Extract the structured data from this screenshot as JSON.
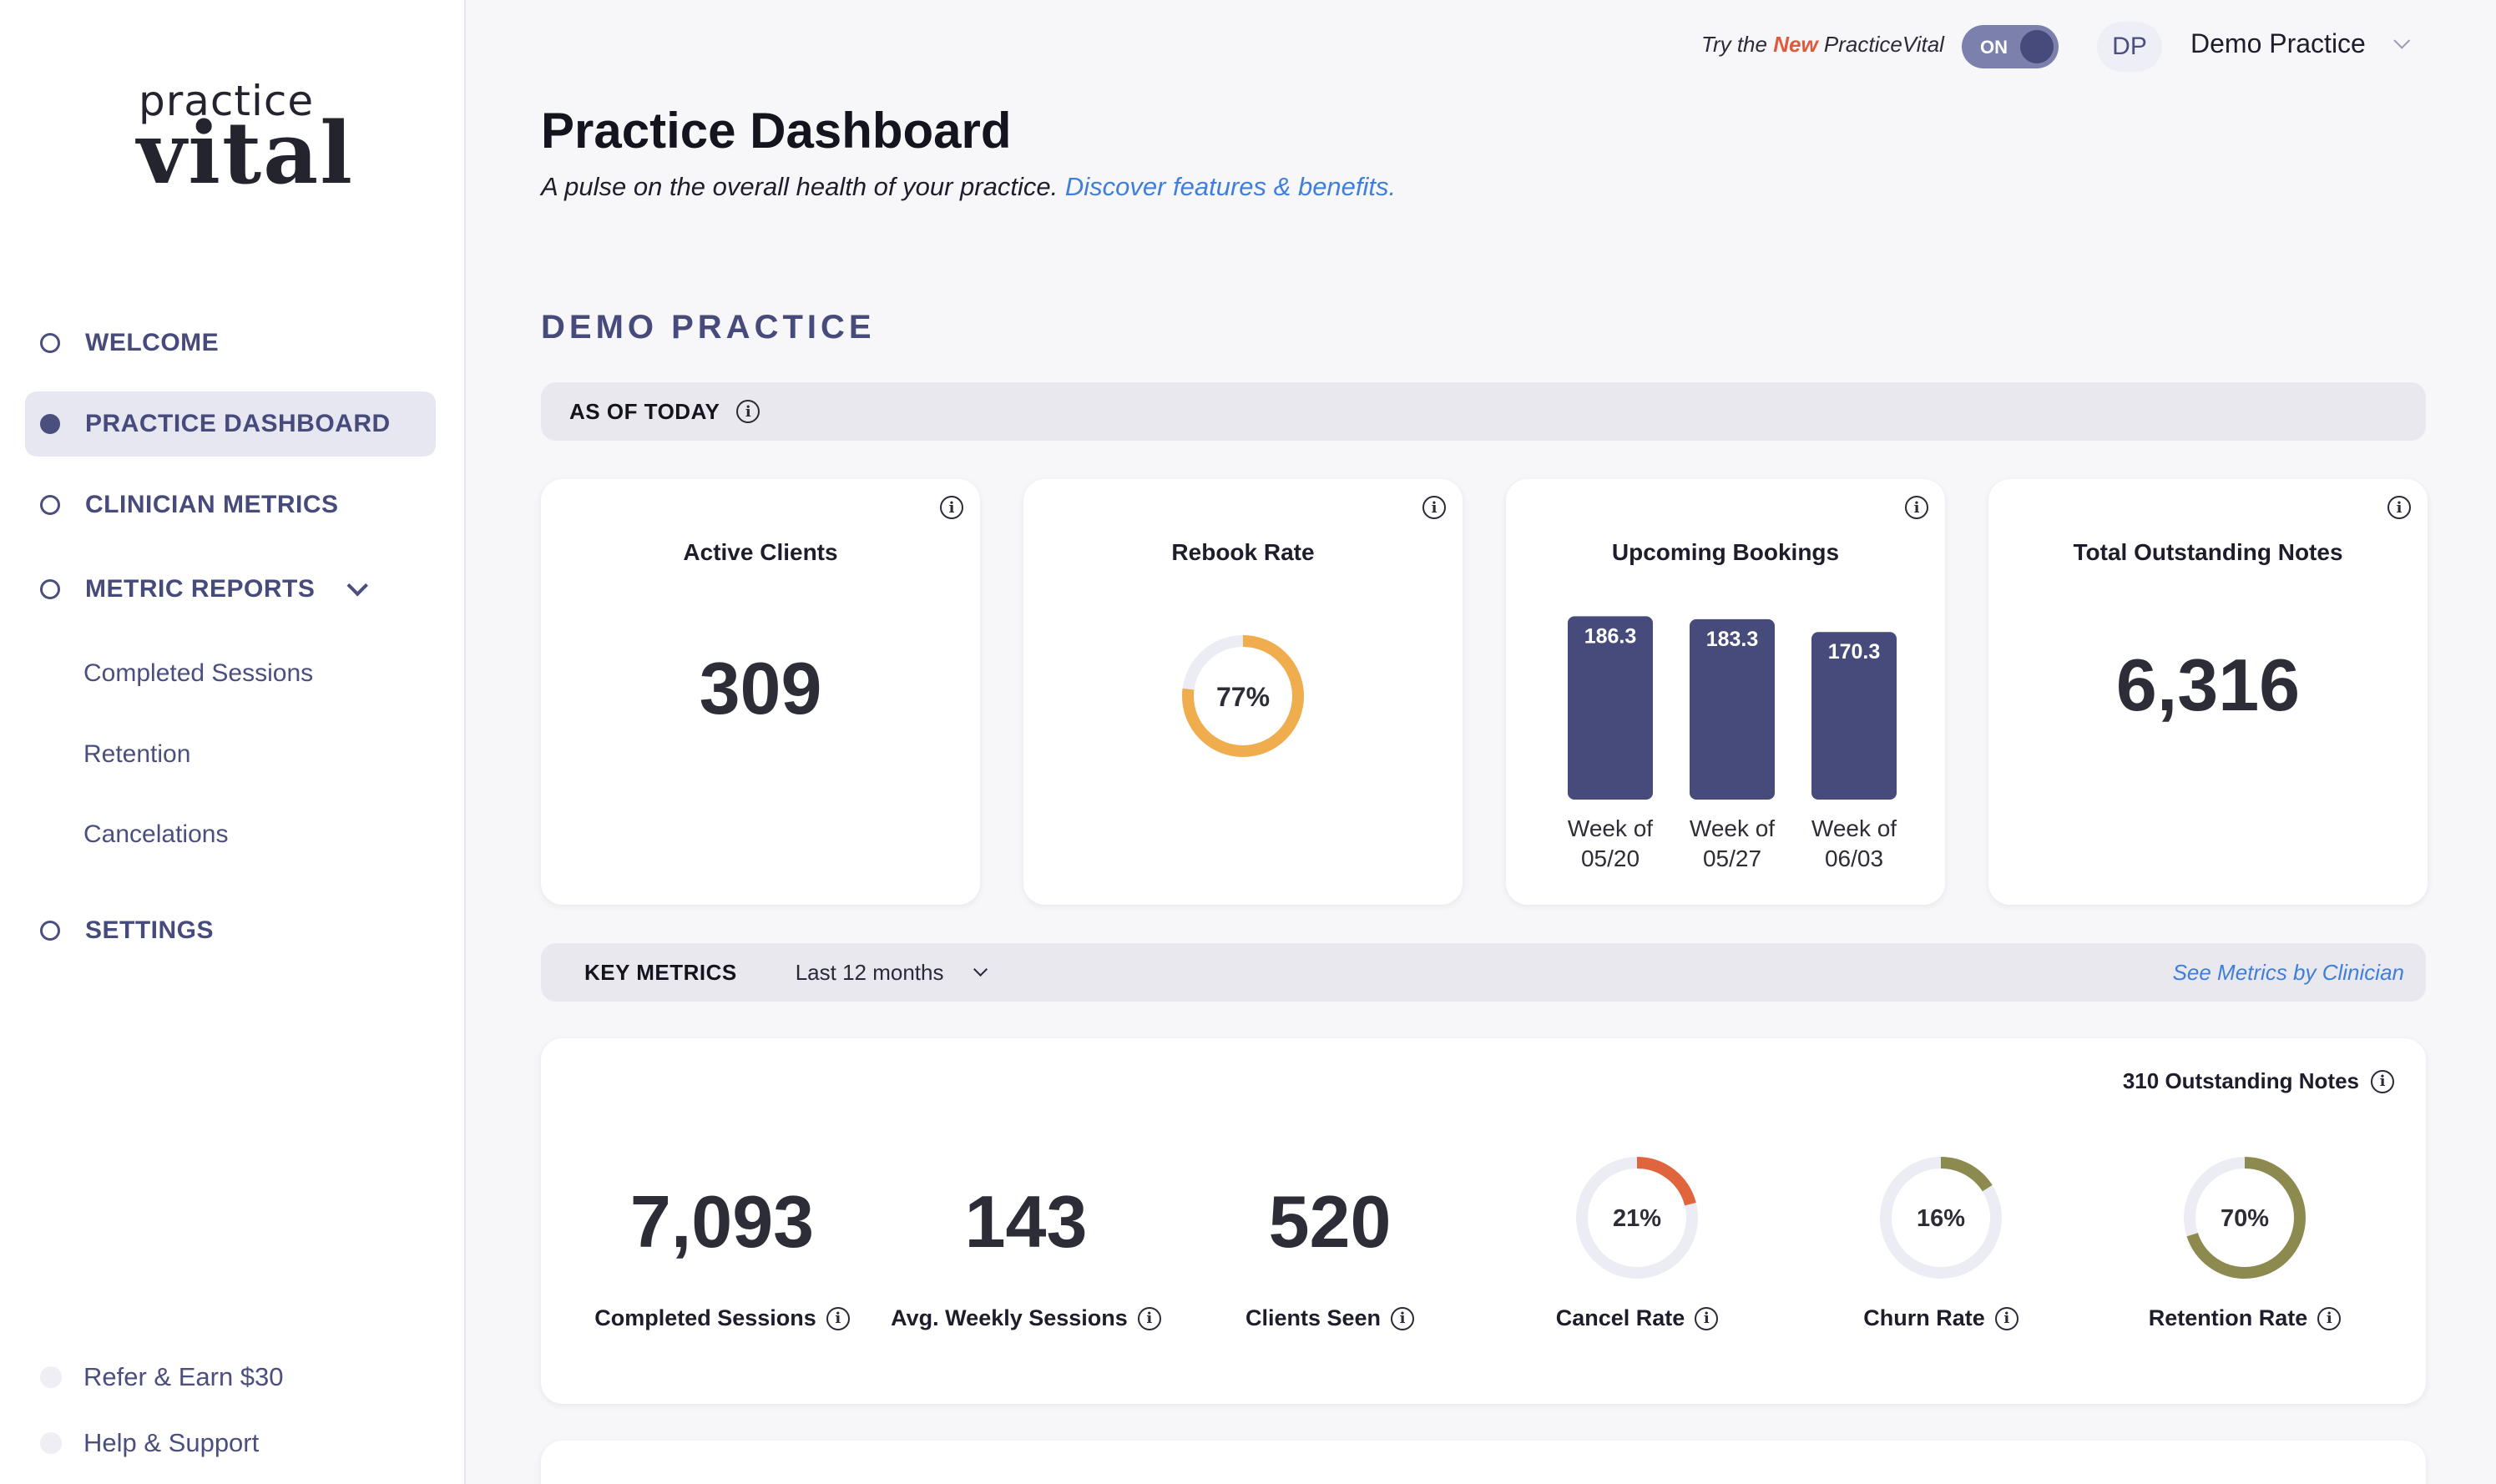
{
  "sidebar": {
    "logo_top": "practice",
    "logo_bottom": "vital",
    "nav": [
      {
        "label": "WELCOME"
      },
      {
        "label": "PRACTICE DASHBOARD"
      },
      {
        "label": "CLINICIAN METRICS"
      },
      {
        "label": "METRIC REPORTS"
      }
    ],
    "sub": [
      "Completed Sessions",
      "Retention",
      "Cancelations"
    ],
    "settings": "SETTINGS",
    "refer": "Refer & Earn $30",
    "help": "Help & Support"
  },
  "header": {
    "try_prefix": "Try the",
    "try_new": "New",
    "try_suffix": "PracticeVital",
    "toggle": "ON",
    "avatar": "DP",
    "practice": "Demo Practice"
  },
  "page": {
    "title": "Practice Dashboard",
    "subtitle": "A pulse on the overall health of your practice.",
    "link": "Discover features & benefits."
  },
  "section": {
    "title": "DEMO PRACTICE",
    "as_of": "AS OF TODAY"
  },
  "cards": {
    "active": {
      "title": "Active Clients",
      "value": "309"
    },
    "rebook": {
      "title": "Rebook Rate",
      "percent": 77,
      "label": "77%",
      "color": "#f0ad4e"
    },
    "bookings": {
      "title": "Upcoming Bookings"
    },
    "notes": {
      "title": "Total Outstanding Notes",
      "value": "6,316"
    }
  },
  "chart_data": {
    "type": "bar",
    "title": "Upcoming Bookings",
    "categories": [
      "Week of 05/20",
      "Week of 05/27",
      "Week of 06/03"
    ],
    "category_lines": [
      [
        "Week of",
        "05/20"
      ],
      [
        "Week of",
        "05/27"
      ],
      [
        "Week of",
        "06/03"
      ]
    ],
    "values": [
      186.3,
      183.3,
      170.3
    ],
    "labels": [
      "186.3",
      "183.3",
      "170.3"
    ],
    "ylim": [
      0,
      190
    ],
    "color": "#474b7c"
  },
  "key_metrics": {
    "label": "KEY METRICS",
    "period": "Last 12 months",
    "link": "See Metrics by Clinician",
    "outstanding": "310 Outstanding Notes",
    "numbers": [
      {
        "value": "7,093",
        "label": "Completed Sessions"
      },
      {
        "value": "143",
        "label": "Avg. Weekly Sessions"
      },
      {
        "value": "520",
        "label": "Clients Seen"
      }
    ],
    "rates": [
      {
        "label": "Cancel Rate",
        "value": "21%",
        "percent": 21,
        "color": "#e0653d"
      },
      {
        "label": "Churn Rate",
        "value": "16%",
        "percent": 16,
        "color": "#8c8a4f"
      },
      {
        "label": "Retention Rate",
        "value": "70%",
        "percent": 70,
        "color": "#8c8a4f"
      }
    ]
  }
}
